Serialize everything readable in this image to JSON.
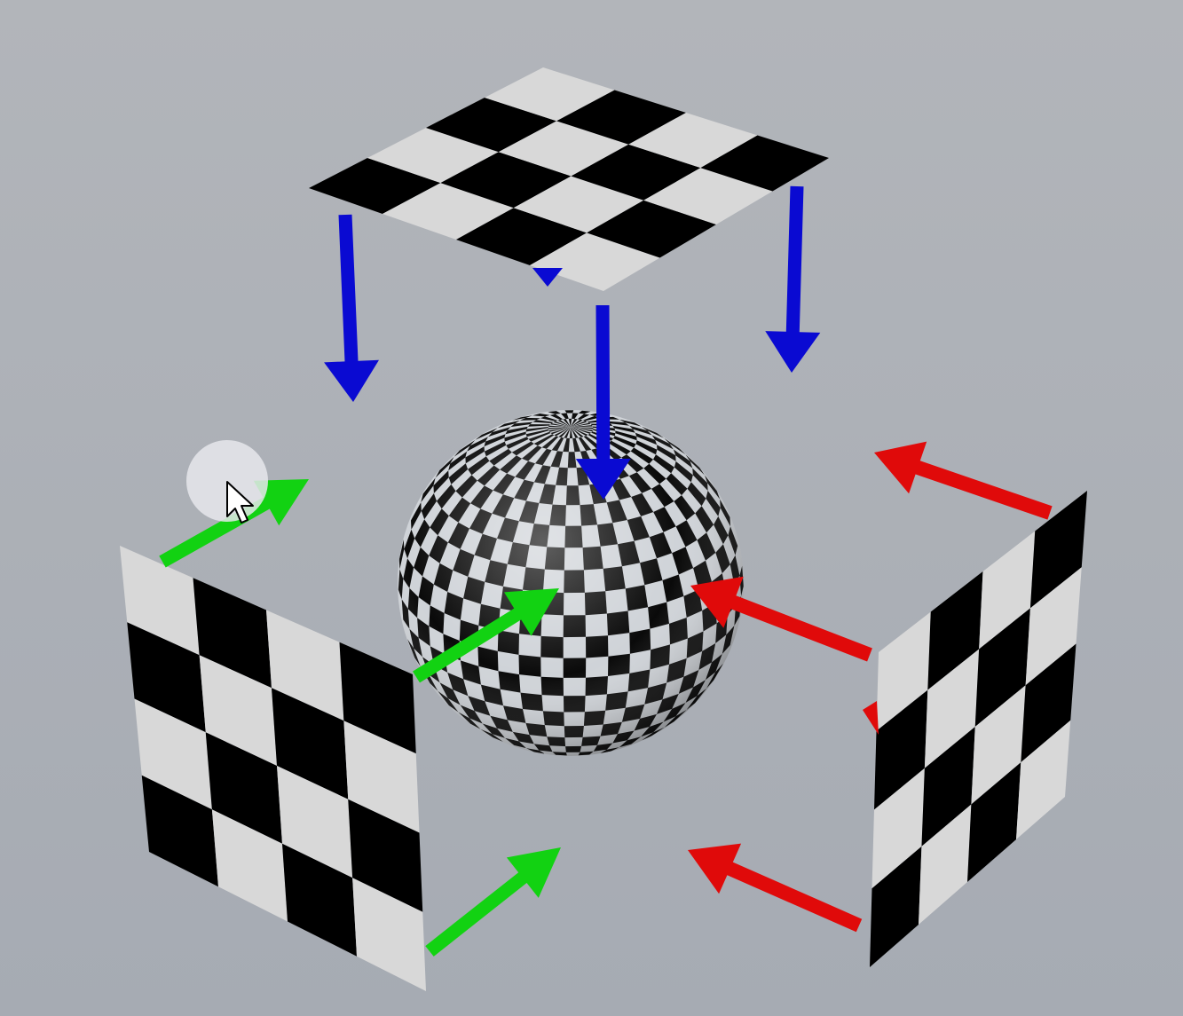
{
  "scene": {
    "background_top": "#b2b5ba",
    "background_bottom": "#a6abb3",
    "checker_light": "#d8d8d8",
    "checker_dark": "#000000",
    "planes": [
      {
        "name": "top-checker-plane",
        "orientation": "horizontal",
        "grid": 4
      },
      {
        "name": "left-checker-plane",
        "orientation": "vertical",
        "grid": 4
      },
      {
        "name": "right-checker-plane",
        "orientation": "vertical",
        "grid": 4
      }
    ],
    "sphere": {
      "name": "checkered-sphere",
      "pattern": "checker"
    },
    "arrow_groups": [
      {
        "name": "blue-projection-arrows",
        "color": "#0a0ad2",
        "direction": "down",
        "count": 3
      },
      {
        "name": "green-projection-arrows",
        "color": "#12d212",
        "direction": "up-right",
        "count": 3
      },
      {
        "name": "red-projection-arrows",
        "color": "#e00a0a",
        "direction": "left",
        "count": 3
      }
    ],
    "cursor": {
      "icon": "mouse-pointer-icon",
      "highlight": "cursor-highlight-circle"
    }
  }
}
